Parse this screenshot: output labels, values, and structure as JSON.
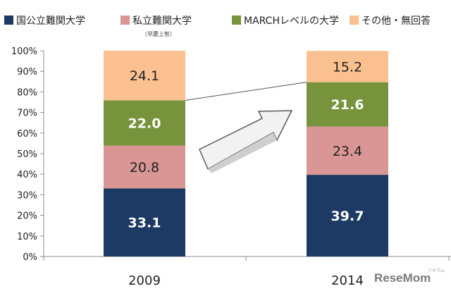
{
  "chart_data": {
    "type": "bar",
    "stacked": true,
    "categories": [
      "2009",
      "2014"
    ],
    "series": [
      {
        "name": "国公立難関大学",
        "values": [
          33.1,
          39.7
        ],
        "color": "#1c3a63",
        "label_color": "#ffffff",
        "label_bold": true
      },
      {
        "name": "私立難関大学",
        "note": "（早慶上智）",
        "values": [
          20.8,
          23.4
        ],
        "color": "#d99694",
        "label_color": "#222222",
        "label_bold": false
      },
      {
        "name": "MARCHレベルの大学",
        "values": [
          22.0,
          21.6
        ],
        "color": "#77933c",
        "label_color": "#ffffff",
        "label_bold": true
      },
      {
        "name": "その他・無回答",
        "values": [
          24.1,
          15.2
        ],
        "color": "#fac090",
        "label_color": "#222222",
        "label_bold": false
      }
    ],
    "ylim": [
      0,
      100
    ],
    "yticks": [
      "0%",
      "10%",
      "20%",
      "30%",
      "40%",
      "50%",
      "60%",
      "70%",
      "80%",
      "90%",
      "100%"
    ],
    "legend_position": "top",
    "grid": false,
    "annotations": [
      "arrow from 2009 bar toward 2014 bar",
      "connector line between MARCH top edges"
    ]
  },
  "watermark": {
    "text": "ReseMom",
    "subtext": "リセマム"
  }
}
